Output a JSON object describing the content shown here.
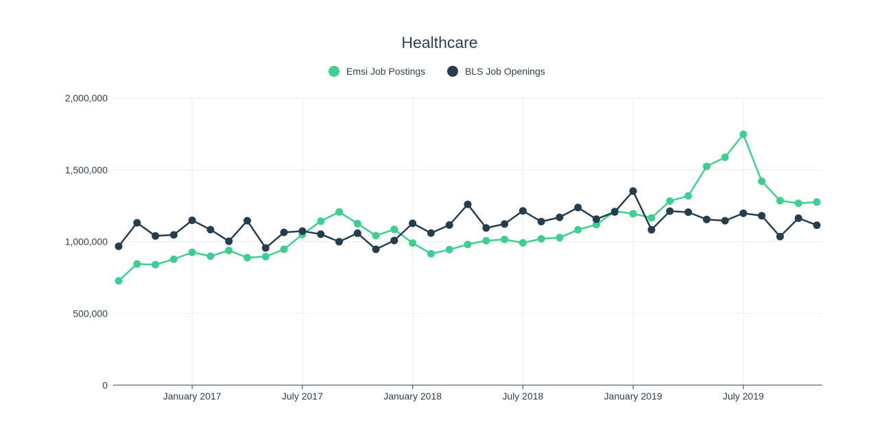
{
  "chart_data": {
    "type": "line",
    "title": "Healthcare",
    "xlabel": "",
    "ylabel": "",
    "ylim": [
      0,
      2000000
    ],
    "yticks": [
      0,
      500000,
      1000000,
      1500000,
      2000000
    ],
    "ytick_labels": [
      "0",
      "500,000",
      "1,000,000",
      "1,500,000",
      "2,000,000"
    ],
    "x": [
      "2016-09",
      "2016-10",
      "2016-11",
      "2016-12",
      "2017-01",
      "2017-02",
      "2017-03",
      "2017-04",
      "2017-05",
      "2017-06",
      "2017-07",
      "2017-08",
      "2017-09",
      "2017-10",
      "2017-11",
      "2017-12",
      "2018-01",
      "2018-02",
      "2018-03",
      "2018-04",
      "2018-05",
      "2018-06",
      "2018-07",
      "2018-08",
      "2018-09",
      "2018-10",
      "2018-11",
      "2018-12",
      "2019-01",
      "2019-02",
      "2019-03",
      "2019-04",
      "2019-05",
      "2019-06",
      "2019-07",
      "2019-08",
      "2019-09",
      "2019-10",
      "2019-11"
    ],
    "xtick_labels": [
      {
        "x": "2017-01",
        "label": "January 2017"
      },
      {
        "x": "2017-07",
        "label": "July 2017"
      },
      {
        "x": "2018-01",
        "label": "January 2018"
      },
      {
        "x": "2018-07",
        "label": "July 2018"
      },
      {
        "x": "2019-01",
        "label": "January 2019"
      },
      {
        "x": "2019-07",
        "label": "July 2019"
      }
    ],
    "grid": true,
    "legend_position": "top-center",
    "series": [
      {
        "name": "Emsi Job Postings",
        "color": "#3ecf8e",
        "values": [
          726000,
          844000,
          839000,
          877000,
          925000,
          898000,
          938000,
          888000,
          895000,
          946000,
          1049000,
          1142000,
          1206000,
          1125000,
          1041000,
          1085000,
          990000,
          915000,
          944000,
          980000,
          1006000,
          1015000,
          991000,
          1019000,
          1027000,
          1082000,
          1118000,
          1211000,
          1194000,
          1165000,
          1282000,
          1318000,
          1523000,
          1587000,
          1747000,
          1420000,
          1285000,
          1267000,
          1275000
        ]
      },
      {
        "name": "BLS Job Openings",
        "color": "#243e4f",
        "values": [
          967000,
          1131000,
          1039000,
          1047000,
          1148000,
          1083000,
          1002000,
          1145000,
          955000,
          1064000,
          1073000,
          1051000,
          999000,
          1058000,
          946000,
          1007000,
          1127000,
          1059000,
          1115000,
          1259000,
          1095000,
          1122000,
          1214000,
          1139000,
          1169000,
          1237000,
          1156000,
          1206000,
          1352000,
          1082000,
          1212000,
          1205000,
          1154000,
          1145000,
          1197000,
          1180000,
          1035000,
          1163000,
          1114000
        ]
      }
    ]
  }
}
